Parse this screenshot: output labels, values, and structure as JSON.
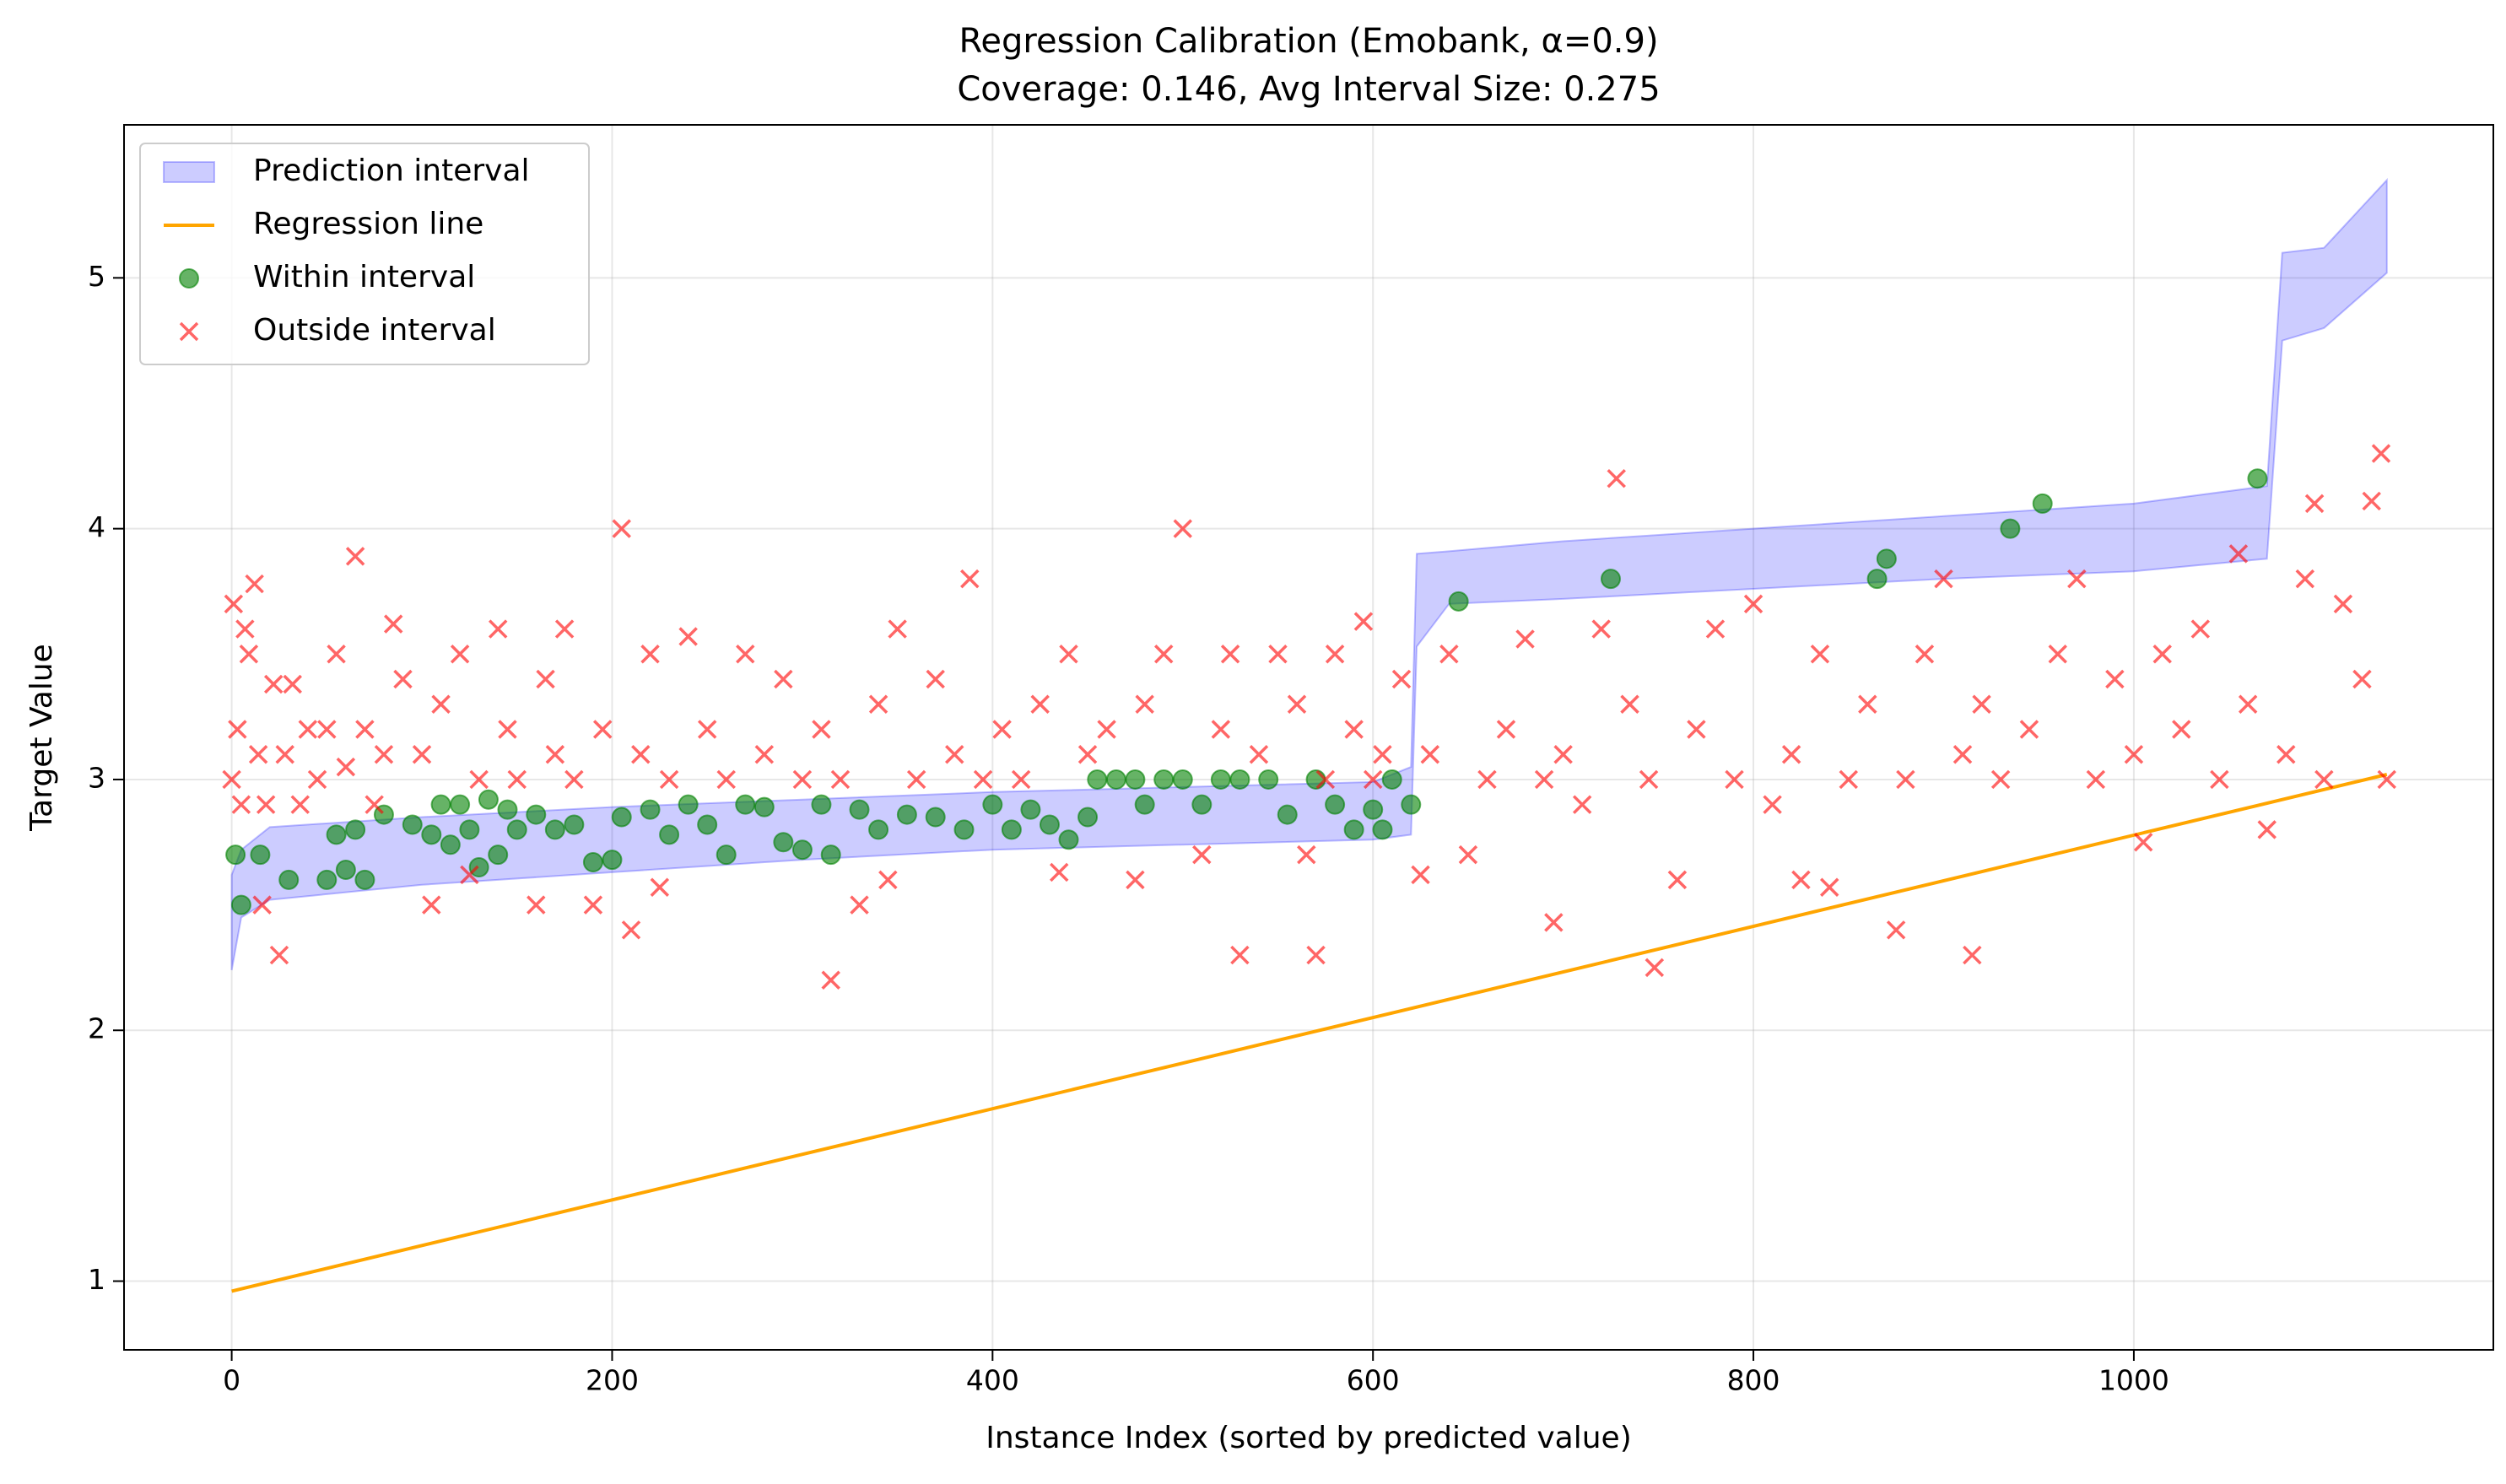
{
  "chart_data": {
    "type": "scatter",
    "title": "Regression Calibration (Emobank, α=0.9)",
    "subtitle": "Coverage: 0.146, Avg Interval Size: 0.275",
    "x_label": "Instance Index (sorted by predicted value)",
    "y_label": "Target Value",
    "xlim": [
      -56.6,
      1189
    ],
    "ylim": [
      0.726,
      5.61
    ],
    "xticks": [
      0,
      200,
      400,
      600,
      800,
      1000
    ],
    "yticks": [
      1,
      2,
      3,
      4,
      5
    ],
    "grid": true,
    "legend": "upper left",
    "series": [
      {
        "name": "Prediction interval",
        "type": "band",
        "color": "#0000ff",
        "x": [
          0,
          5,
          20,
          100,
          200,
          300,
          400,
          500,
          600,
          620,
          623,
          640,
          700,
          800,
          900,
          1000,
          1070,
          1078,
          1100,
          1133
        ],
        "lower": [
          2.24,
          2.45,
          2.52,
          2.58,
          2.63,
          2.68,
          2.72,
          2.74,
          2.76,
          2.78,
          3.53,
          3.7,
          3.72,
          3.76,
          3.8,
          3.83,
          3.88,
          4.75,
          4.8,
          5.02
        ],
        "upper": [
          2.62,
          2.72,
          2.81,
          2.85,
          2.89,
          2.92,
          2.95,
          2.97,
          2.99,
          3.05,
          3.9,
          3.91,
          3.95,
          4.0,
          4.05,
          4.1,
          4.17,
          5.1,
          5.12,
          5.39
        ]
      },
      {
        "name": "Regression line",
        "type": "line",
        "color": "#ffa500",
        "x": [
          0,
          1133
        ],
        "values": [
          0.96,
          3.02
        ]
      },
      {
        "name": "Within interval",
        "type": "points",
        "marker": "circle",
        "color": "#008000",
        "x": [
          2,
          5,
          15,
          30,
          50,
          55,
          60,
          65,
          70,
          80,
          95,
          105,
          110,
          115,
          120,
          125,
          130,
          135,
          140,
          145,
          150,
          160,
          170,
          180,
          190,
          200,
          205,
          220,
          230,
          240,
          250,
          260,
          270,
          280,
          290,
          300,
          310,
          315,
          330,
          340,
          355,
          370,
          385,
          400,
          410,
          420,
          430,
          440,
          450,
          455,
          465,
          475,
          480,
          490,
          500,
          510,
          520,
          530,
          545,
          555,
          570,
          580,
          590,
          600,
          605,
          610,
          620,
          645,
          725,
          865,
          870,
          935,
          952,
          1065
        ],
        "values": [
          2.7,
          2.5,
          2.7,
          2.6,
          2.6,
          2.78,
          2.64,
          2.8,
          2.6,
          2.86,
          2.82,
          2.78,
          2.9,
          2.74,
          2.9,
          2.8,
          2.65,
          2.92,
          2.7,
          2.88,
          2.8,
          2.86,
          2.8,
          2.82,
          2.67,
          2.68,
          2.85,
          2.88,
          2.78,
          2.9,
          2.82,
          2.7,
          2.9,
          2.89,
          2.75,
          2.72,
          2.9,
          2.7,
          2.88,
          2.8,
          2.86,
          2.85,
          2.8,
          2.9,
          2.8,
          2.88,
          2.82,
          2.76,
          2.85,
          3.0,
          3.0,
          3.0,
          2.9,
          3.0,
          3.0,
          2.9,
          3.0,
          3.0,
          3.0,
          2.86,
          3.0,
          2.9,
          2.8,
          2.88,
          2.8,
          3.0,
          2.9,
          3.71,
          3.8,
          3.8,
          3.88,
          4.0,
          4.1,
          4.2
        ]
      },
      {
        "name": "Outside interval",
        "type": "points",
        "marker": "x",
        "color": "#ff0000",
        "x": [
          0,
          1,
          3,
          5,
          7,
          9,
          12,
          14,
          16,
          18,
          22,
          25,
          28,
          32,
          36,
          40,
          45,
          50,
          55,
          60,
          65,
          70,
          75,
          80,
          85,
          90,
          100,
          105,
          110,
          120,
          125,
          130,
          140,
          145,
          150,
          160,
          165,
          170,
          175,
          180,
          190,
          195,
          205,
          210,
          215,
          220,
          225,
          230,
          240,
          250,
          260,
          270,
          280,
          290,
          300,
          310,
          315,
          320,
          330,
          340,
          345,
          350,
          360,
          370,
          380,
          388,
          395,
          405,
          415,
          425,
          435,
          440,
          450,
          460,
          475,
          480,
          490,
          500,
          510,
          520,
          525,
          530,
          540,
          550,
          560,
          565,
          570,
          575,
          580,
          590,
          595,
          600,
          605,
          615,
          625,
          630,
          640,
          650,
          660,
          670,
          680,
          690,
          695,
          700,
          710,
          720,
          728,
          735,
          745,
          748,
          760,
          770,
          780,
          790,
          800,
          810,
          820,
          825,
          835,
          840,
          850,
          860,
          875,
          880,
          890,
          900,
          910,
          915,
          920,
          930,
          945,
          960,
          970,
          980,
          990,
          1000,
          1005,
          1015,
          1025,
          1035,
          1045,
          1055,
          1060,
          1070,
          1080,
          1090,
          1095,
          1100,
          1110,
          1120,
          1125,
          1130,
          1133
        ],
        "values": [
          3.0,
          3.7,
          3.2,
          2.9,
          3.6,
          3.5,
          3.78,
          3.1,
          2.5,
          2.9,
          3.38,
          2.3,
          3.1,
          3.38,
          2.9,
          3.2,
          3.0,
          3.2,
          3.5,
          3.05,
          3.89,
          3.2,
          2.9,
          3.1,
          3.62,
          3.4,
          3.1,
          2.5,
          3.3,
          3.5,
          2.62,
          3.0,
          3.6,
          3.2,
          3.0,
          2.5,
          3.4,
          3.1,
          3.6,
          3.0,
          2.5,
          3.2,
          4.0,
          2.4,
          3.1,
          3.5,
          2.57,
          3.0,
          3.57,
          3.2,
          3.0,
          3.5,
          3.1,
          3.4,
          3.0,
          3.2,
          2.2,
          3.0,
          2.5,
          3.3,
          2.6,
          3.6,
          3.0,
          3.4,
          3.1,
          3.8,
          3.0,
          3.2,
          3.0,
          3.3,
          2.63,
          3.5,
          3.1,
          3.2,
          2.6,
          3.3,
          3.5,
          4.0,
          2.7,
          3.2,
          3.5,
          2.3,
          3.1,
          3.5,
          3.3,
          2.7,
          2.3,
          3.0,
          3.5,
          3.2,
          3.63,
          3.0,
          3.1,
          3.4,
          2.62,
          3.1,
          3.5,
          2.7,
          3.0,
          3.2,
          3.56,
          3.0,
          2.43,
          3.1,
          2.9,
          3.6,
          4.2,
          3.3,
          3.0,
          2.25,
          2.6,
          3.2,
          3.6,
          3.0,
          3.7,
          2.9,
          3.1,
          2.6,
          3.5,
          2.57,
          3.0,
          3.3,
          2.4,
          3.0,
          3.5,
          3.8,
          3.1,
          2.3,
          3.3,
          3.0,
          3.2,
          3.5,
          3.8,
          3.0,
          3.4,
          3.1,
          2.75,
          3.5,
          3.2,
          3.6,
          3.0,
          3.9,
          3.3,
          2.8,
          3.1,
          3.8,
          4.1,
          3.0,
          3.7,
          3.4,
          4.11,
          4.3,
          3.0
        ]
      }
    ]
  }
}
